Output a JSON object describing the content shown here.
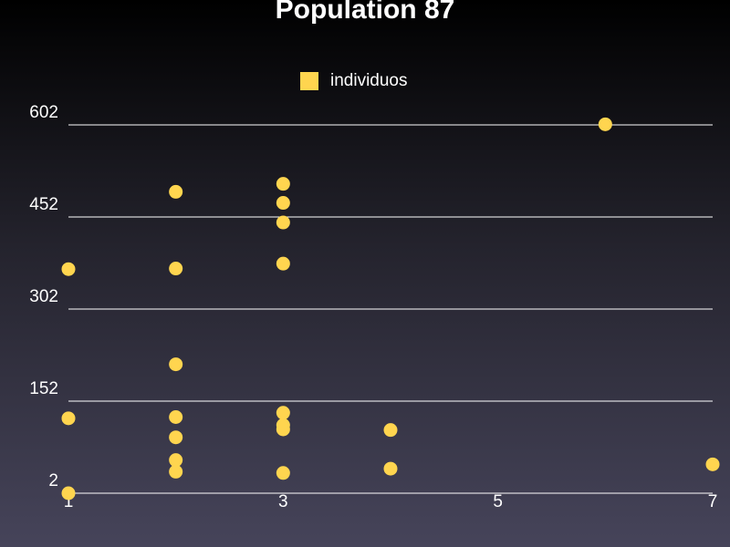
{
  "chart_data": {
    "type": "scatter",
    "title": "Population 87",
    "xlabel": "",
    "ylabel": "",
    "xlim": [
      1,
      7
    ],
    "ylim": [
      2,
      602
    ],
    "x_ticks": [
      1,
      3,
      5,
      7
    ],
    "x_tick_labels": [
      "1",
      "3",
      "5",
      "7"
    ],
    "y_ticks": [
      2,
      152,
      302,
      452,
      602
    ],
    "y_tick_labels": [
      "2",
      "152",
      "302",
      "452",
      "602"
    ],
    "grid": "horizontal",
    "legend_position": "top-center",
    "series": [
      {
        "name": "individuos",
        "color": "#ffd54f",
        "points": [
          {
            "x": 1,
            "y": 2
          },
          {
            "x": 1,
            "y": 124
          },
          {
            "x": 1,
            "y": 367
          },
          {
            "x": 2,
            "y": 37
          },
          {
            "x": 2,
            "y": 56
          },
          {
            "x": 2,
            "y": 93
          },
          {
            "x": 2,
            "y": 126
          },
          {
            "x": 2,
            "y": 212
          },
          {
            "x": 2,
            "y": 368
          },
          {
            "x": 2,
            "y": 493
          },
          {
            "x": 3,
            "y": 35
          },
          {
            "x": 3,
            "y": 106
          },
          {
            "x": 3,
            "y": 113
          },
          {
            "x": 3,
            "y": 133
          },
          {
            "x": 3,
            "y": 376
          },
          {
            "x": 3,
            "y": 443
          },
          {
            "x": 3,
            "y": 475
          },
          {
            "x": 3,
            "y": 506
          },
          {
            "x": 4,
            "y": 42
          },
          {
            "x": 4,
            "y": 105
          },
          {
            "x": 6,
            "y": 603
          },
          {
            "x": 7,
            "y": 49
          }
        ]
      }
    ]
  }
}
